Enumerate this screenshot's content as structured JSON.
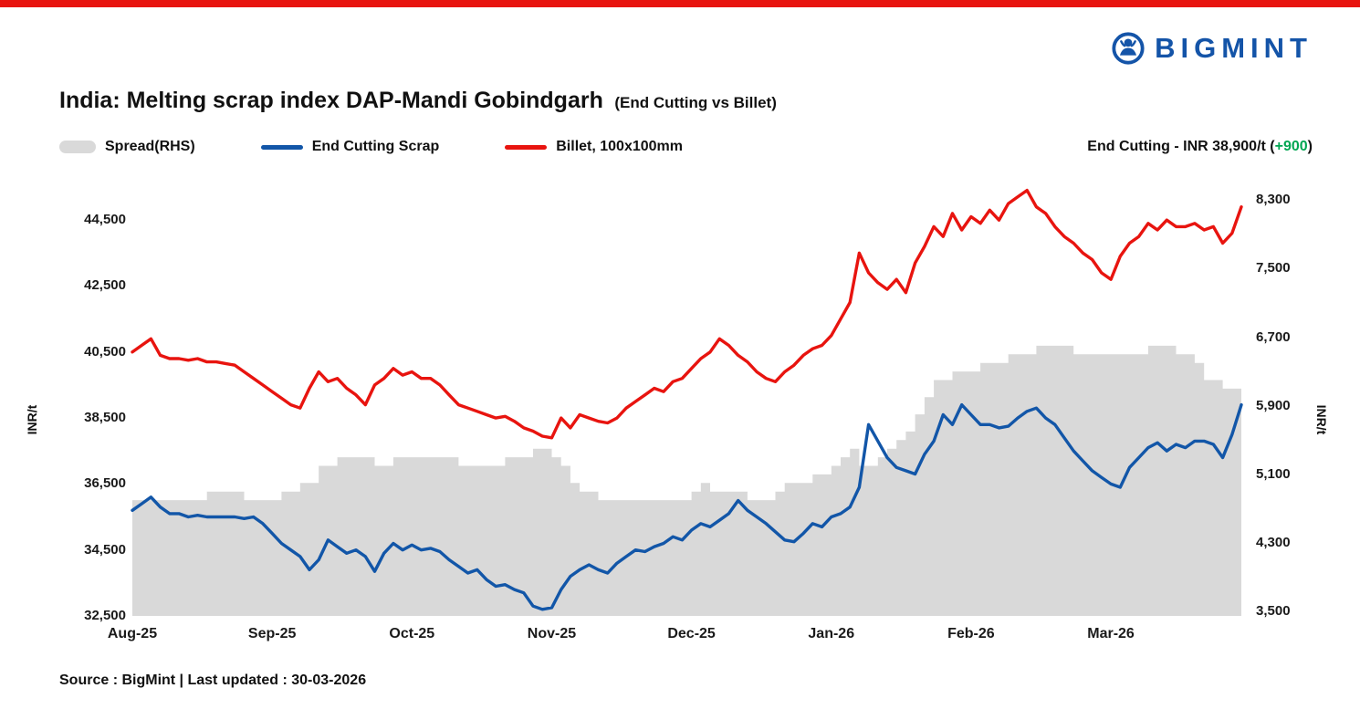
{
  "page": {
    "brand": "BIGMINT",
    "brand_color": "#1454a8",
    "top_bar_color": "#e8140f",
    "title": "India: Melting scrap index DAP-Mandi Gobindgarh",
    "title_suffix": "(End Cutting vs Billet)",
    "source_line": "Source : BigMint | Last updated : 30-03-2026"
  },
  "legend": [
    {
      "label": "Spread(RHS)",
      "type": "area",
      "color": "#d9d9d9"
    },
    {
      "label": "End Cutting Scrap",
      "type": "line",
      "color": "#1256a8"
    },
    {
      "label": "Billet, 100x100mm",
      "type": "line",
      "color": "#e8140f"
    }
  ],
  "annotation": {
    "prefix": "End Cutting - INR 38,900/t (",
    "change": "+900",
    "suffix": ")",
    "change_color": "#00a651"
  },
  "chart_data": {
    "type": "line",
    "title": "India: Melting scrap index DAP-Mandi Gobindgarh (End Cutting vs Billet)",
    "grid": false,
    "legend_position": "top",
    "x_months": [
      "Aug-25",
      "Sep-25",
      "Oct-25",
      "Nov-25",
      "Dec-25",
      "Jan-26",
      "Feb-26",
      "Mar-26"
    ],
    "points_per_month": 15,
    "left_axis": {
      "label": "INR/t",
      "min": 32500,
      "max": 45500,
      "ticks": [
        {
          "value": 44500,
          "label": "44,500"
        },
        {
          "value": 42500,
          "label": "42,500"
        },
        {
          "value": 40500,
          "label": "40,500"
        },
        {
          "value": 38500,
          "label": "38,500"
        },
        {
          "value": 36500,
          "label": "36,500"
        },
        {
          "value": 34500,
          "label": "34,500"
        },
        {
          "value": 32500,
          "label": "32,500"
        }
      ]
    },
    "right_axis": {
      "label": "INR/t",
      "min": 3450,
      "max": 8450,
      "ticks": [
        {
          "value": 8300,
          "label": "8,300"
        },
        {
          "value": 7500,
          "label": "7,500"
        },
        {
          "value": 6700,
          "label": "6,700"
        },
        {
          "value": 5900,
          "label": "5,900"
        },
        {
          "value": 5100,
          "label": "5,100"
        },
        {
          "value": 4300,
          "label": "4,300"
        },
        {
          "value": 3500,
          "label": "3,500"
        }
      ]
    },
    "series": [
      {
        "name": "Spread(RHS)",
        "type": "area",
        "axis": "right",
        "color": "#d9d9d9",
        "step": true,
        "values": [
          4800,
          4800,
          4800,
          4800,
          4800,
          4800,
          4800,
          4800,
          4900,
          4900,
          4900,
          4900,
          4800,
          4800,
          4800,
          4800,
          4900,
          4900,
          5000,
          5000,
          5200,
          5200,
          5300,
          5300,
          5300,
          5300,
          5200,
          5200,
          5300,
          5300,
          5300,
          5300,
          5300,
          5300,
          5300,
          5200,
          5200,
          5200,
          5200,
          5200,
          5300,
          5300,
          5300,
          5400,
          5400,
          5300,
          5200,
          5000,
          4900,
          4900,
          4800,
          4800,
          4800,
          4800,
          4800,
          4800,
          4800,
          4800,
          4800,
          4800,
          4900,
          5000,
          4900,
          4900,
          4900,
          4900,
          4800,
          4800,
          4800,
          4900,
          5000,
          5000,
          5000,
          5100,
          5100,
          5200,
          5300,
          5400,
          5200,
          5200,
          5300,
          5400,
          5500,
          5600,
          5800,
          6000,
          6200,
          6200,
          6300,
          6300,
          6300,
          6400,
          6400,
          6400,
          6500,
          6500,
          6500,
          6600,
          6600,
          6600,
          6600,
          6500,
          6500,
          6500,
          6500,
          6500,
          6500,
          6500,
          6500,
          6600,
          6600,
          6600,
          6500,
          6500,
          6400,
          6200,
          6200,
          6100,
          6100,
          6000
        ]
      },
      {
        "name": "End Cutting Scrap",
        "type": "line",
        "axis": "left",
        "color": "#1256a8",
        "values": [
          35700,
          35900,
          36100,
          35800,
          35600,
          35600,
          35500,
          35550,
          35500,
          35500,
          35500,
          35500,
          35450,
          35500,
          35300,
          35000,
          34700,
          34500,
          34300,
          33900,
          34200,
          34800,
          34600,
          34400,
          34500,
          34300,
          33850,
          34400,
          34700,
          34500,
          34650,
          34500,
          34550,
          34450,
          34200,
          34000,
          33800,
          33900,
          33600,
          33400,
          33450,
          33300,
          33200,
          32800,
          32700,
          32750,
          33300,
          33700,
          33900,
          34050,
          33900,
          33800,
          34100,
          34300,
          34500,
          34450,
          34600,
          34700,
          34900,
          34800,
          35100,
          35300,
          35200,
          35400,
          35600,
          36000,
          35700,
          35500,
          35300,
          35050,
          34800,
          34750,
          35000,
          35300,
          35200,
          35500,
          35600,
          35800,
          36400,
          38300,
          37800,
          37300,
          37000,
          36900,
          36800,
          37400,
          37800,
          38600,
          38300,
          38900,
          38600,
          38300,
          38300,
          38200,
          38250,
          38500,
          38700,
          38800,
          38500,
          38300,
          37900,
          37500,
          37200,
          36900,
          36700,
          36500,
          36400,
          37000,
          37300,
          37600,
          37750,
          37500,
          37700,
          37600,
          37800,
          37800,
          37700,
          37300,
          38000,
          38900
        ]
      },
      {
        "name": "Billet, 100x100mm",
        "type": "line",
        "axis": "left",
        "color": "#e8140f",
        "values": [
          40500,
          40700,
          40900,
          40400,
          40300,
          40300,
          40250,
          40300,
          40200,
          40200,
          40150,
          40100,
          39900,
          39700,
          39500,
          39300,
          39100,
          38900,
          38800,
          39400,
          39900,
          39600,
          39700,
          39400,
          39200,
          38900,
          39500,
          39700,
          40000,
          39800,
          39900,
          39700,
          39700,
          39500,
          39200,
          38900,
          38800,
          38700,
          38600,
          38500,
          38550,
          38400,
          38200,
          38100,
          37950,
          37900,
          38500,
          38200,
          38600,
          38500,
          38400,
          38350,
          38500,
          38800,
          39000,
          39200,
          39400,
          39300,
          39600,
          39700,
          40000,
          40300,
          40500,
          40900,
          40700,
          40400,
          40200,
          39900,
          39700,
          39600,
          39900,
          40100,
          40400,
          40600,
          40700,
          41000,
          41500,
          42000,
          43500,
          42900,
          42600,
          42400,
          42700,
          42300,
          43200,
          43700,
          44300,
          44000,
          44700,
          44200,
          44600,
          44400,
          44800,
          44500,
          45000,
          45200,
          45400,
          44900,
          44700,
          44300,
          44000,
          43800,
          43500,
          43300,
          42900,
          42700,
          43400,
          43800,
          44000,
          44400,
          44200,
          44500,
          44300,
          44300,
          44400,
          44200,
          44300,
          43800,
          44100,
          44900
        ]
      }
    ]
  }
}
